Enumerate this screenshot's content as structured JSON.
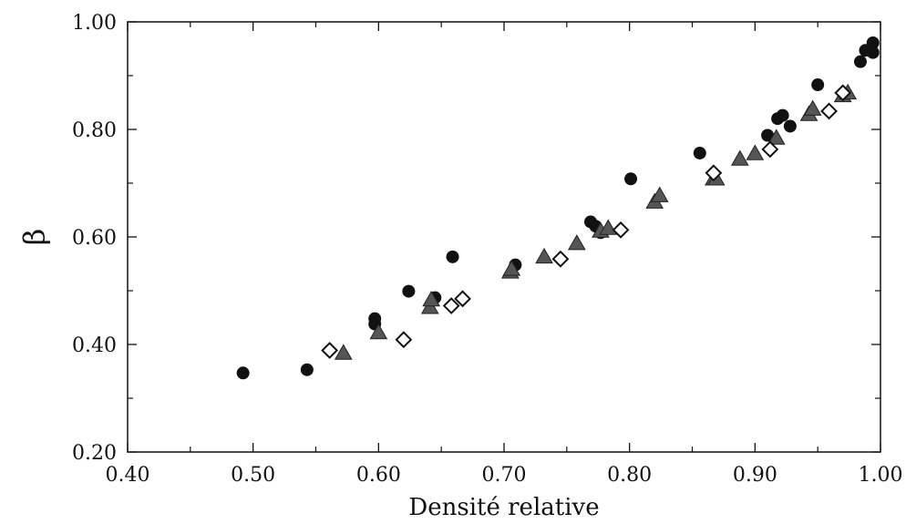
{
  "chart_data": {
    "type": "scatter",
    "title": "",
    "xlabel": "Densité relative",
    "ylabel": "β",
    "xlim": [
      0.4,
      1.0
    ],
    "ylim": [
      0.2,
      1.0
    ],
    "xticks": [
      "0.40",
      "0.50",
      "0.60",
      "0.70",
      "0.80",
      "0.90",
      "1.00"
    ],
    "yticks": [
      "0.20",
      "0.40",
      "0.60",
      "0.80",
      "1.00"
    ],
    "grid": false,
    "legend": "none",
    "series": [
      {
        "marker": "circle",
        "color": "#111111",
        "points": [
          [
            0.492,
            0.347
          ],
          [
            0.543,
            0.353
          ],
          [
            0.597,
            0.448
          ],
          [
            0.597,
            0.438
          ],
          [
            0.624,
            0.499
          ],
          [
            0.645,
            0.487
          ],
          [
            0.659,
            0.563
          ],
          [
            0.709,
            0.548
          ],
          [
            0.769,
            0.628
          ],
          [
            0.773,
            0.62
          ],
          [
            0.777,
            0.608
          ],
          [
            0.801,
            0.708
          ],
          [
            0.856,
            0.756
          ],
          [
            0.91,
            0.789
          ],
          [
            0.918,
            0.82
          ],
          [
            0.922,
            0.826
          ],
          [
            0.928,
            0.806
          ],
          [
            0.95,
            0.883
          ],
          [
            0.984,
            0.926
          ],
          [
            0.988,
            0.947
          ],
          [
            0.994,
            0.961
          ],
          [
            0.994,
            0.943
          ]
        ]
      },
      {
        "marker": "triangle",
        "color": "#555555",
        "points": [
          [
            0.572,
            0.384
          ],
          [
            0.6,
            0.422
          ],
          [
            0.641,
            0.469
          ],
          [
            0.642,
            0.483
          ],
          [
            0.705,
            0.535
          ],
          [
            0.706,
            0.54
          ],
          [
            0.732,
            0.563
          ],
          [
            0.758,
            0.588
          ],
          [
            0.777,
            0.611
          ],
          [
            0.783,
            0.616
          ],
          [
            0.82,
            0.665
          ],
          [
            0.824,
            0.677
          ],
          [
            0.867,
            0.708
          ],
          [
            0.869,
            0.708
          ],
          [
            0.888,
            0.745
          ],
          [
            0.9,
            0.755
          ],
          [
            0.917,
            0.784
          ],
          [
            0.943,
            0.828
          ],
          [
            0.946,
            0.838
          ],
          [
            0.97,
            0.863
          ],
          [
            0.974,
            0.868
          ]
        ]
      },
      {
        "marker": "diamond",
        "color": "#111111",
        "points": [
          [
            0.561,
            0.389
          ],
          [
            0.62,
            0.409
          ],
          [
            0.658,
            0.472
          ],
          [
            0.667,
            0.485
          ],
          [
            0.745,
            0.559
          ],
          [
            0.793,
            0.613
          ],
          [
            0.867,
            0.719
          ],
          [
            0.912,
            0.763
          ],
          [
            0.959,
            0.834
          ],
          [
            0.97,
            0.868
          ]
        ]
      }
    ]
  }
}
